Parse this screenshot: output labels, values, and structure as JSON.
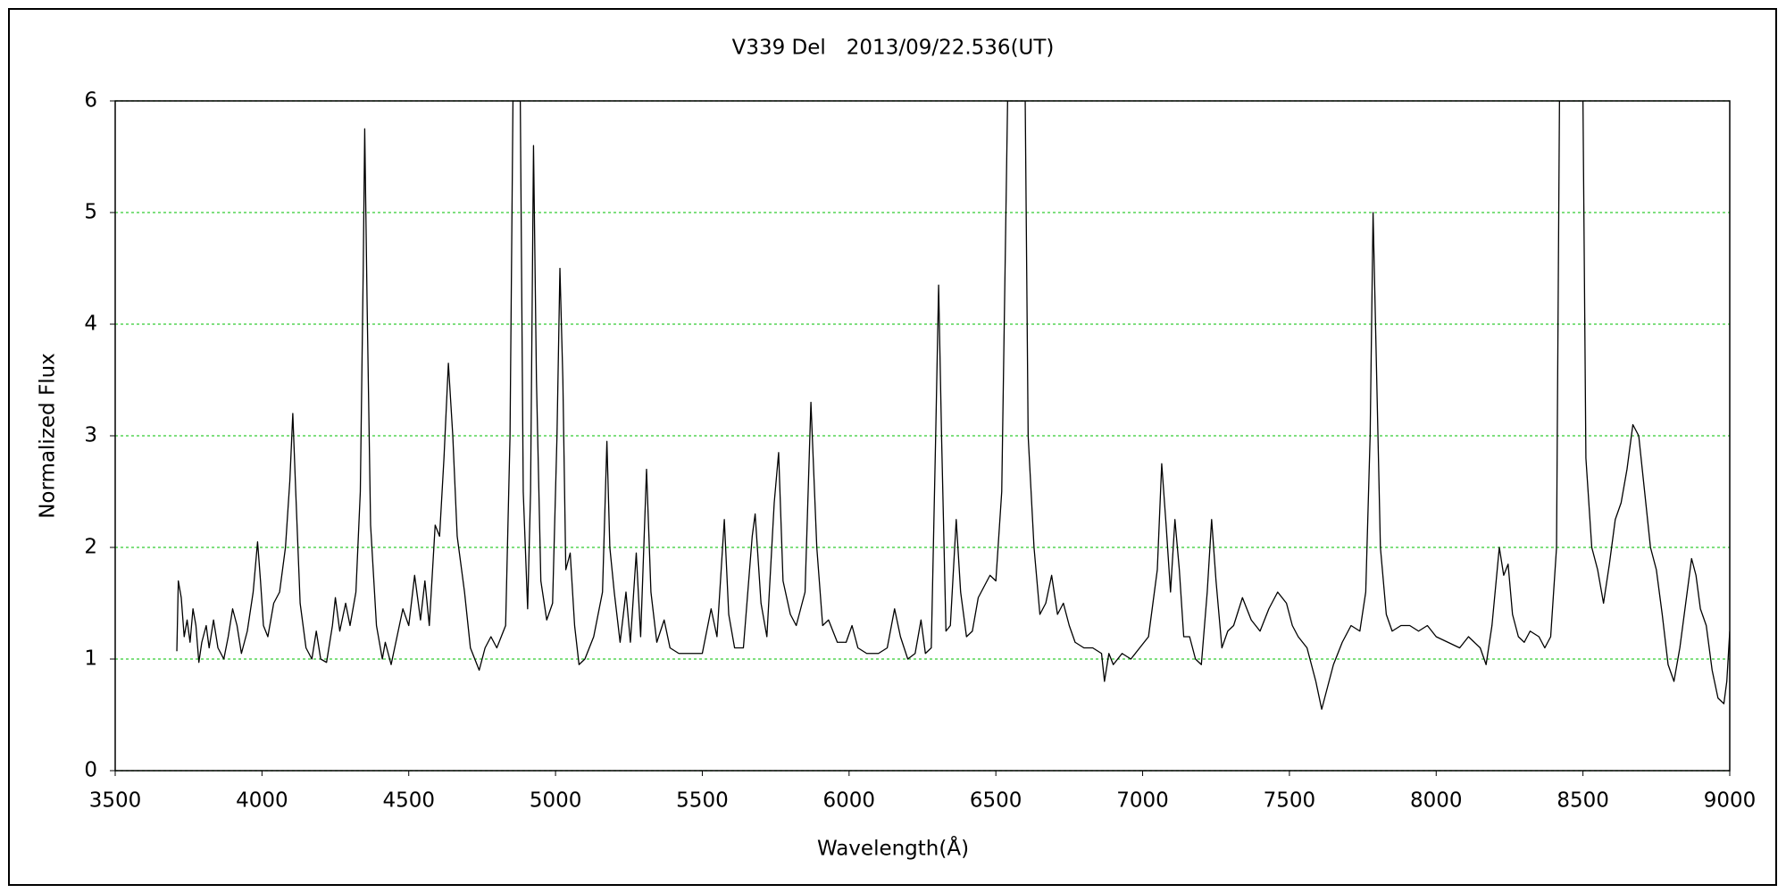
{
  "chart_data": {
    "type": "line",
    "title": "V339 Del　2013/09/22.536(UT)",
    "x_label": "Wavelength(Å)",
    "y_label": "Normalized Flux",
    "color": "#000000",
    "grid": true,
    "grid_color": "#33cc33",
    "xlim": [
      3500,
      9000
    ],
    "xticks": [
      3500,
      4000,
      4500,
      5000,
      5500,
      6000,
      6500,
      7000,
      7500,
      8000,
      8500,
      9000
    ],
    "ylim": [
      0,
      6
    ],
    "yticks": [
      0,
      1,
      2,
      3,
      4,
      5,
      6
    ],
    "x": [
      3710,
      3715,
      3725,
      3735,
      3745,
      3755,
      3765,
      3775,
      3785,
      3795,
      3810,
      3820,
      3835,
      3850,
      3870,
      3885,
      3900,
      3915,
      3930,
      3950,
      3970,
      3985,
      3995,
      4005,
      4020,
      4040,
      4060,
      4080,
      4095,
      4105,
      4115,
      4130,
      4150,
      4170,
      4185,
      4200,
      4220,
      4240,
      4250,
      4265,
      4285,
      4300,
      4320,
      4335,
      4345,
      4350,
      4358,
      4370,
      4390,
      4410,
      4420,
      4440,
      4460,
      4480,
      4500,
      4520,
      4540,
      4555,
      4570,
      4590,
      4605,
      4620,
      4635,
      4650,
      4665,
      4690,
      4710,
      4740,
      4760,
      4780,
      4800,
      4830,
      4845,
      4855,
      4880,
      4890,
      4905,
      4915,
      4925,
      4935,
      4950,
      4970,
      4990,
      5005,
      5015,
      5025,
      5035,
      5050,
      5065,
      5080,
      5100,
      5130,
      5160,
      5175,
      5185,
      5200,
      5220,
      5240,
      5255,
      5275,
      5290,
      5310,
      5325,
      5345,
      5370,
      5390,
      5420,
      5450,
      5500,
      5530,
      5550,
      5575,
      5590,
      5610,
      5640,
      5670,
      5680,
      5700,
      5720,
      5745,
      5760,
      5775,
      5800,
      5820,
      5850,
      5870,
      5890,
      5910,
      5930,
      5960,
      5990,
      6010,
      6030,
      6060,
      6100,
      6130,
      6155,
      6175,
      6200,
      6225,
      6245,
      6260,
      6280,
      6295,
      6305,
      6315,
      6330,
      6345,
      6365,
      6380,
      6400,
      6420,
      6440,
      6460,
      6480,
      6500,
      6520,
      6540,
      6600,
      6610,
      6630,
      6650,
      6670,
      6690,
      6710,
      6730,
      6750,
      6770,
      6800,
      6830,
      6860,
      6870,
      6885,
      6900,
      6930,
      6960,
      6990,
      7020,
      7050,
      7065,
      7080,
      7095,
      7110,
      7125,
      7140,
      7160,
      7180,
      7200,
      7220,
      7235,
      7250,
      7270,
      7290,
      7310,
      7340,
      7370,
      7400,
      7430,
      7460,
      7490,
      7510,
      7530,
      7560,
      7590,
      7610,
      7630,
      7650,
      7680,
      7710,
      7740,
      7760,
      7775,
      7785,
      7795,
      7810,
      7830,
      7850,
      7880,
      7910,
      7940,
      7970,
      8000,
      8040,
      8080,
      8110,
      8150,
      8170,
      8190,
      8215,
      8230,
      8245,
      8260,
      8280,
      8300,
      8320,
      8350,
      8370,
      8390,
      8410,
      8420,
      8500,
      8510,
      8530,
      8550,
      8570,
      8590,
      8610,
      8630,
      8650,
      8670,
      8690,
      8710,
      8730,
      8750,
      8770,
      8790,
      8810,
      8830,
      8850,
      8870,
      8885,
      8900,
      8920,
      8940,
      8960,
      8980,
      8990,
      9000
    ],
    "values": [
      1.07,
      1.7,
      1.55,
      1.2,
      1.35,
      1.15,
      1.45,
      1.3,
      0.97,
      1.15,
      1.3,
      1.1,
      1.35,
      1.1,
      1.0,
      1.2,
      1.45,
      1.3,
      1.05,
      1.25,
      1.6,
      2.05,
      1.7,
      1.3,
      1.2,
      1.5,
      1.6,
      2.0,
      2.6,
      3.2,
      2.5,
      1.5,
      1.1,
      1.0,
      1.25,
      1.0,
      0.97,
      1.3,
      1.55,
      1.25,
      1.5,
      1.3,
      1.6,
      2.5,
      4.5,
      5.75,
      4.2,
      2.2,
      1.3,
      1.0,
      1.15,
      0.95,
      1.2,
      1.45,
      1.3,
      1.75,
      1.35,
      1.7,
      1.3,
      2.2,
      2.1,
      2.8,
      3.65,
      3.0,
      2.1,
      1.6,
      1.1,
      0.9,
      1.1,
      1.2,
      1.1,
      1.3,
      3.0,
      6,
      6,
      2.5,
      1.45,
      2.5,
      5.6,
      3.5,
      1.7,
      1.35,
      1.5,
      3.0,
      4.5,
      3.5,
      1.8,
      1.95,
      1.3,
      0.95,
      1.0,
      1.2,
      1.6,
      2.95,
      2.0,
      1.6,
      1.15,
      1.6,
      1.15,
      1.95,
      1.2,
      2.7,
      1.6,
      1.15,
      1.35,
      1.1,
      1.05,
      1.05,
      1.05,
      1.45,
      1.2,
      2.25,
      1.4,
      1.1,
      1.1,
      2.1,
      2.3,
      1.5,
      1.2,
      2.4,
      2.85,
      1.7,
      1.4,
      1.3,
      1.6,
      3.3,
      2.0,
      1.3,
      1.35,
      1.15,
      1.15,
      1.3,
      1.1,
      1.05,
      1.05,
      1.1,
      1.45,
      1.2,
      1.0,
      1.05,
      1.35,
      1.05,
      1.1,
      3.0,
      4.35,
      3.0,
      1.25,
      1.3,
      2.25,
      1.6,
      1.2,
      1.25,
      1.55,
      1.65,
      1.75,
      1.7,
      2.5,
      6,
      6,
      3.0,
      2.0,
      1.4,
      1.5,
      1.75,
      1.4,
      1.5,
      1.3,
      1.15,
      1.1,
      1.1,
      1.05,
      0.8,
      1.05,
      0.95,
      1.05,
      1.0,
      1.1,
      1.2,
      1.8,
      2.75,
      2.2,
      1.6,
      2.25,
      1.8,
      1.2,
      1.2,
      1.0,
      0.95,
      1.6,
      2.25,
      1.7,
      1.1,
      1.25,
      1.3,
      1.55,
      1.35,
      1.25,
      1.45,
      1.6,
      1.5,
      1.3,
      1.2,
      1.1,
      0.8,
      0.55,
      0.75,
      0.95,
      1.15,
      1.3,
      1.25,
      1.6,
      3.0,
      5.0,
      3.8,
      2.0,
      1.4,
      1.25,
      1.3,
      1.3,
      1.25,
      1.3,
      1.2,
      1.15,
      1.1,
      1.2,
      1.1,
      0.95,
      1.3,
      2.0,
      1.75,
      1.85,
      1.4,
      1.2,
      1.15,
      1.25,
      1.2,
      1.1,
      1.2,
      2.0,
      6,
      6,
      2.8,
      2.0,
      1.8,
      1.5,
      1.85,
      2.25,
      2.4,
      2.7,
      3.1,
      3.0,
      2.5,
      2.0,
      1.8,
      1.4,
      0.95,
      0.8,
      1.1,
      1.5,
      1.9,
      1.75,
      1.45,
      1.3,
      0.9,
      0.65,
      0.6,
      0.8,
      1.25
    ]
  }
}
